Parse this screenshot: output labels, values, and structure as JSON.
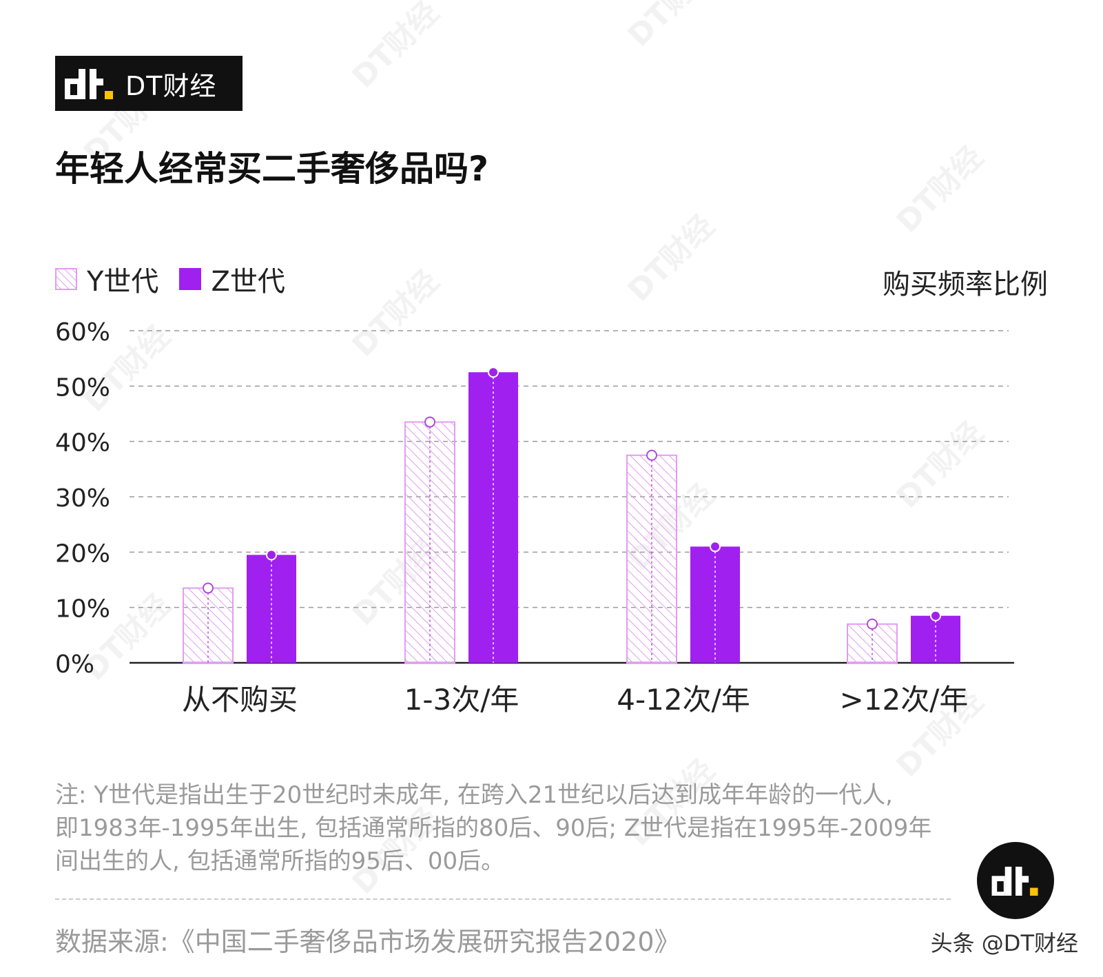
{
  "brand": {
    "name": "DT财经",
    "logo_icon": "dt-logo-icon"
  },
  "title": "年轻人经常买二手奢侈品吗?",
  "legend": [
    {
      "label": "Y世代",
      "style": "hatched",
      "color": "#e29cf0"
    },
    {
      "label": "Z世代",
      "style": "solid",
      "color": "#a020f0"
    }
  ],
  "chart_subtitle": "购买频率比例",
  "chart_data": {
    "type": "bar",
    "categories": [
      "从不购买",
      "1-3次/年",
      "4-12次/年",
      ">12次/年"
    ],
    "series": [
      {
        "name": "Y世代",
        "values": [
          13.5,
          43.5,
          37.5,
          7
        ]
      },
      {
        "name": "Z世代",
        "values": [
          19.5,
          52.5,
          21,
          8.5
        ]
      }
    ],
    "ylim": [
      0,
      60
    ],
    "yticks": [
      0,
      10,
      20,
      30,
      40,
      50,
      60
    ],
    "ytick_labels": [
      "0%",
      "10%",
      "20%",
      "30%",
      "40%",
      "50%",
      "60%"
    ],
    "grid": true,
    "legend_position": "top-left",
    "colors": {
      "y_gen": "#e29cf0",
      "z_gen": "#a020f0",
      "grid": "#9a9a9a",
      "axis": "#222222"
    }
  },
  "footnote": {
    "lines": [
      "注: Y世代是指出生于20世纪时未成年, 在跨入21世纪以后达到成年年龄的一代人,",
      "即1983年-1995年出生, 包括通常所指的80后、90后; Z世代是指在1995年-2009年",
      "间出生的人, 包括通常所指的95后、00后。"
    ]
  },
  "source": "数据来源:《中国二手奢侈品市场发展研究报告2020》",
  "credit": "头条 @DT财经",
  "watermark": "DT财经"
}
